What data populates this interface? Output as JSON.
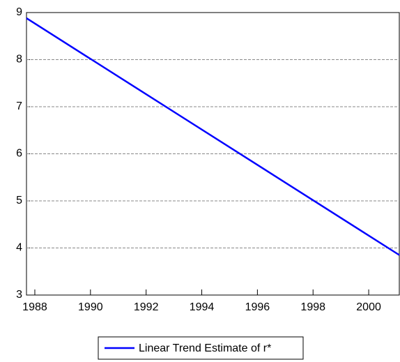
{
  "chart_data": {
    "type": "line",
    "x": [
      1987.7,
      2001.1
    ],
    "series": [
      {
        "name": "Linear Trend Estimate of r*",
        "color": "#0000ff",
        "values": [
          8.88,
          3.85
        ]
      }
    ],
    "xlim": [
      1987.7,
      2001.1
    ],
    "xticks": [
      1988,
      1990,
      1992,
      1994,
      1996,
      1998,
      2000
    ],
    "ylim": [
      3,
      9
    ],
    "yticks": [
      3,
      4,
      5,
      6,
      7,
      8,
      9
    ],
    "grid": true,
    "legend": "bottom"
  }
}
